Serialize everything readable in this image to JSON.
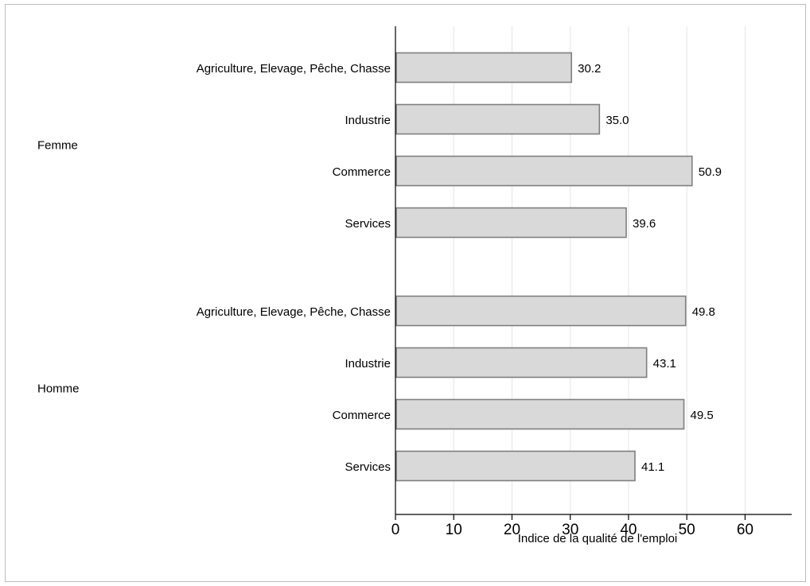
{
  "chart_data": {
    "type": "bar",
    "orientation": "horizontal",
    "xlabel": "Indice de la qualité de l'emploi",
    "xlim": [
      0,
      68
    ],
    "xticks": [
      0,
      10,
      20,
      30,
      40,
      50,
      60
    ],
    "grid": true,
    "groups": [
      {
        "name": "Femme",
        "categories": [
          "Agriculture, Elevage, Pêche, Chasse",
          "Industrie",
          "Commerce",
          "Services"
        ],
        "values": [
          30.2,
          35.0,
          50.9,
          39.6
        ],
        "value_labels": [
          "30.2",
          "35.0",
          "50.9",
          "39.6"
        ]
      },
      {
        "name": "Homme",
        "categories": [
          "Agriculture, Elevage, Pêche, Chasse",
          "Industrie",
          "Commerce",
          "Services"
        ],
        "values": [
          49.8,
          43.1,
          49.5,
          41.1
        ],
        "value_labels": [
          "49.8",
          "43.1",
          "49.5",
          "41.1"
        ]
      }
    ],
    "colors": {
      "bar_fill": "#d9d9d9",
      "bar_stroke": "#7f7f7f",
      "grid": "#e6e6e6",
      "axis": "#000000"
    }
  }
}
